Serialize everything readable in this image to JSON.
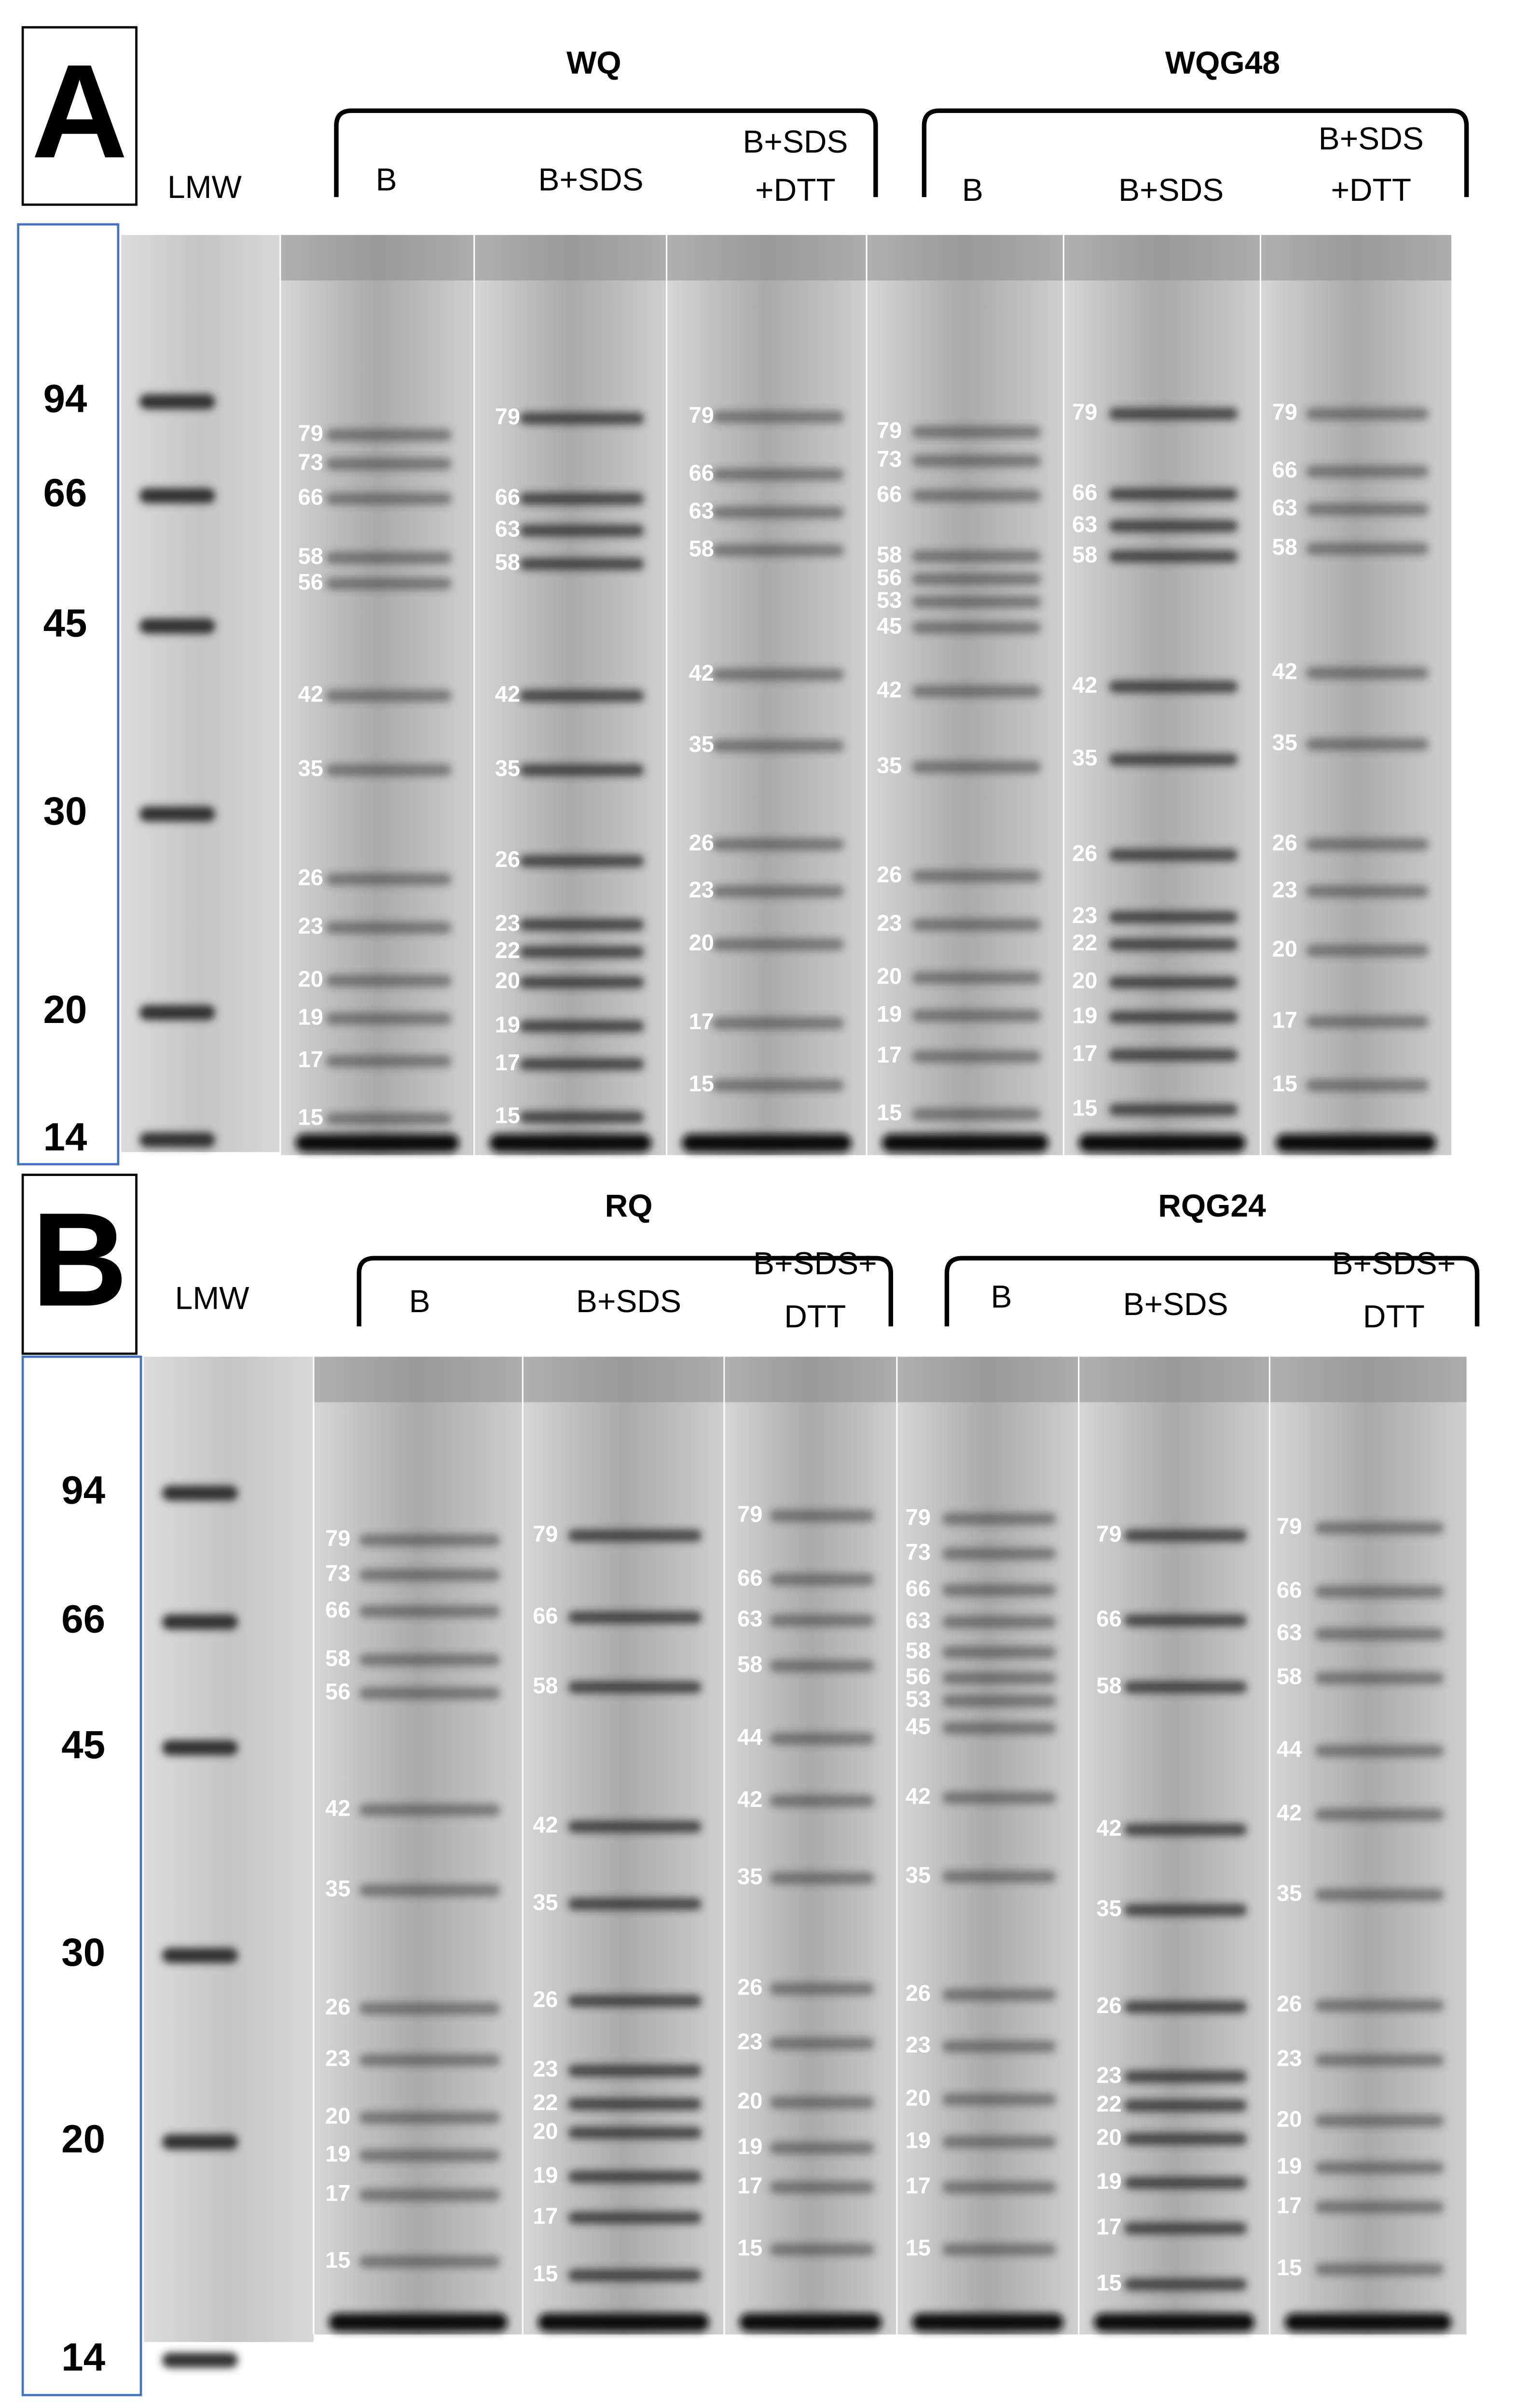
{
  "panels": [
    {
      "letter": "A",
      "ladder_label": "LMW",
      "ladder": [
        94,
        66,
        45,
        30,
        20,
        14
      ],
      "groups": [
        {
          "name": "WQ",
          "lanes": [
            {
              "label": [
                "B"
              ],
              "bands": [
                79,
                73,
                66,
                58,
                56,
                42,
                35,
                26,
                23,
                20,
                19,
                17,
                15
              ]
            },
            {
              "label": [
                "B+SDS"
              ],
              "bands": [
                79,
                66,
                63,
                58,
                42,
                35,
                26,
                23,
                22,
                20,
                19,
                17,
                15
              ]
            },
            {
              "label": [
                "B+SDS",
                "+DTT"
              ],
              "bands": [
                79,
                66,
                63,
                58,
                42,
                35,
                26,
                23,
                20,
                17,
                15
              ]
            }
          ]
        },
        {
          "name": "WQG48",
          "lanes": [
            {
              "label": [
                "B"
              ],
              "bands": [
                79,
                73,
                66,
                58,
                56,
                53,
                45,
                42,
                35,
                26,
                23,
                20,
                19,
                17,
                15
              ]
            },
            {
              "label": [
                "B+SDS"
              ],
              "bands": [
                79,
                66,
                63,
                58,
                42,
                35,
                26,
                23,
                22,
                20,
                19,
                17,
                15
              ]
            },
            {
              "label": [
                "B+SDS",
                "+DTT"
              ],
              "bands": [
                79,
                66,
                63,
                58,
                42,
                35,
                26,
                23,
                20,
                17,
                15
              ]
            }
          ]
        }
      ]
    },
    {
      "letter": "B",
      "ladder_label": "LMW",
      "ladder": [
        94,
        66,
        45,
        30,
        20,
        14
      ],
      "groups": [
        {
          "name": "RQ",
          "lanes": [
            {
              "label": [
                "B"
              ],
              "bands": [
                79,
                73,
                66,
                58,
                56,
                42,
                35,
                26,
                23,
                20,
                19,
                17,
                15
              ]
            },
            {
              "label": [
                "B+SDS"
              ],
              "bands": [
                79,
                66,
                58,
                42,
                35,
                26,
                23,
                22,
                20,
                19,
                17,
                15
              ]
            },
            {
              "label": [
                "B+SDS+",
                "DTT"
              ],
              "bands": [
                79,
                66,
                63,
                58,
                44,
                42,
                35,
                26,
                23,
                20,
                19,
                17,
                15
              ]
            }
          ]
        },
        {
          "name": "RQG24",
          "lanes": [
            {
              "label": [
                "B"
              ],
              "bands": [
                79,
                73,
                66,
                63,
                58,
                56,
                53,
                45,
                42,
                35,
                26,
                23,
                20,
                19,
                17,
                15
              ]
            },
            {
              "label": [
                "B+SDS"
              ],
              "bands": [
                79,
                66,
                58,
                42,
                35,
                26,
                23,
                22,
                20,
                19,
                17,
                15
              ]
            },
            {
              "label": [
                "B+SDS+",
                "DTT"
              ],
              "bands": [
                79,
                66,
                63,
                58,
                44,
                42,
                35,
                26,
                23,
                20,
                19,
                17,
                15
              ]
            }
          ]
        }
      ]
    }
  ]
}
